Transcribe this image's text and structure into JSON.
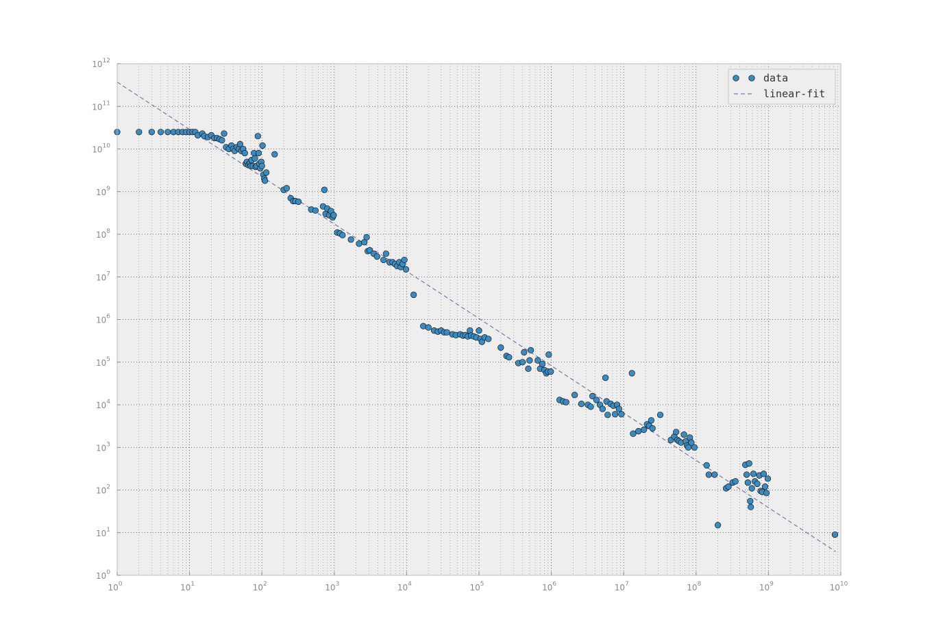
{
  "chart_data": {
    "type": "scatter",
    "xscale": "log",
    "yscale": "log",
    "xlim": [
      1,
      10000000000
    ],
    "ylim": [
      1,
      1000000000000
    ],
    "grid": true,
    "legend_position": "top-right",
    "x_tick_labels": [
      {
        "base": "10",
        "exp": "0"
      },
      {
        "base": "10",
        "exp": "1"
      },
      {
        "base": "10",
        "exp": "2"
      },
      {
        "base": "10",
        "exp": "3"
      },
      {
        "base": "10",
        "exp": "4"
      },
      {
        "base": "10",
        "exp": "5"
      },
      {
        "base": "10",
        "exp": "6"
      },
      {
        "base": "10",
        "exp": "7"
      },
      {
        "base": "10",
        "exp": "8"
      },
      {
        "base": "10",
        "exp": "9"
      },
      {
        "base": "10",
        "exp": "10"
      }
    ],
    "y_tick_labels": [
      {
        "base": "10",
        "exp": "0"
      },
      {
        "base": "10",
        "exp": "1"
      },
      {
        "base": "10",
        "exp": "2"
      },
      {
        "base": "10",
        "exp": "3"
      },
      {
        "base": "10",
        "exp": "4"
      },
      {
        "base": "10",
        "exp": "5"
      },
      {
        "base": "10",
        "exp": "6"
      },
      {
        "base": "10",
        "exp": "7"
      },
      {
        "base": "10",
        "exp": "8"
      },
      {
        "base": "10",
        "exp": "9"
      },
      {
        "base": "10",
        "exp": "10"
      },
      {
        "base": "10",
        "exp": "11"
      },
      {
        "base": "10",
        "exp": "12"
      }
    ],
    "series": [
      {
        "name": "data",
        "kind": "scatter",
        "color": "#3b8bc0",
        "edge_color": "#1a1a1a",
        "points": [
          [
            1,
            25000000000.0
          ],
          [
            2,
            25000000000.0
          ],
          [
            3,
            25000000000.0
          ],
          [
            4,
            25000000000.0
          ],
          [
            5,
            25000000000.0
          ],
          [
            6,
            25000000000.0
          ],
          [
            7,
            25000000000.0
          ],
          [
            8,
            25000000000.0
          ],
          [
            9,
            25000000000.0
          ],
          [
            10,
            25000000000.0
          ],
          [
            11,
            25000000000.0
          ],
          [
            12,
            25000000000.0
          ],
          [
            13,
            21000000000.0
          ],
          [
            15,
            23000000000.0
          ],
          [
            16,
            20000000000.0
          ],
          [
            18,
            19000000000.0
          ],
          [
            20,
            21000000000.0
          ],
          [
            22,
            18000000000.0
          ],
          [
            24,
            18000000000.0
          ],
          [
            26,
            17000000000.0
          ],
          [
            28,
            16000000000.0
          ],
          [
            30,
            23000000000.0
          ],
          [
            32,
            11000000000.0
          ],
          [
            35,
            10000000000.0
          ],
          [
            38,
            12000000000.0
          ],
          [
            40,
            10000000000.0
          ],
          [
            42,
            9000000000.0
          ],
          [
            45,
            11000000000.0
          ],
          [
            48,
            10000000000.0
          ],
          [
            50,
            13000000000.0
          ],
          [
            52,
            9000000000.0
          ],
          [
            55,
            10000000000.0
          ],
          [
            58,
            8000000000.0
          ],
          [
            60,
            4500000000.0
          ],
          [
            62,
            5000000000.0
          ],
          [
            65,
            4200000000.0
          ],
          [
            68,
            4600000000.0
          ],
          [
            70,
            4000000000.0
          ],
          [
            72,
            5500000000.0
          ],
          [
            75,
            4000000000.0
          ],
          [
            78,
            8000000000.0
          ],
          [
            80,
            6000000000.0
          ],
          [
            82,
            3800000000.0
          ],
          [
            85,
            4000000000.0
          ],
          [
            88,
            20000000000.0
          ],
          [
            90,
            8000000000.0
          ],
          [
            92,
            4500000000.0
          ],
          [
            95,
            3500000000.0
          ],
          [
            98,
            5000000000.0
          ],
          [
            100,
            4000000000.0
          ],
          [
            102,
            12000000000.0
          ],
          [
            105,
            2500000000.0
          ],
          [
            108,
            2000000000.0
          ],
          [
            110,
            1800000000.0
          ],
          [
            115,
            2800000000.0
          ],
          [
            150,
            7500000000.0
          ],
          [
            200,
            1100000000.0
          ],
          [
            220,
            1200000000.0
          ],
          [
            250,
            700000000.0
          ],
          [
            270,
            600000000.0
          ],
          [
            290,
            600000000.0
          ],
          [
            320,
            580000000.0
          ],
          [
            480,
            380000000.0
          ],
          [
            550,
            360000000.0
          ],
          [
            700,
            450000000.0
          ],
          [
            730,
            1100000000.0
          ],
          [
            760,
            300000000.0
          ],
          [
            800,
            400000000.0
          ],
          [
            850,
            280000000.0
          ],
          [
            900,
            350000000.0
          ],
          [
            950,
            250000000.0
          ],
          [
            980,
            280000000.0
          ],
          [
            1100,
            110000000.0
          ],
          [
            1200,
            105000000.0
          ],
          [
            1300,
            95000000.0
          ],
          [
            1700,
            75000000.0
          ],
          [
            2200,
            60000000.0
          ],
          [
            2600,
            65000000.0
          ],
          [
            2800,
            85000000.0
          ],
          [
            2900,
            40000000.0
          ],
          [
            3100,
            42000000.0
          ],
          [
            3500,
            35000000.0
          ],
          [
            3900,
            30000000.0
          ],
          [
            4800,
            25000000.0
          ],
          [
            5200,
            35000000.0
          ],
          [
            5800,
            22000000.0
          ],
          [
            6400,
            22000000.0
          ],
          [
            6900,
            20000000.0
          ],
          [
            7400,
            18000000.0
          ],
          [
            7900,
            22000000.0
          ],
          [
            8300,
            17000000.0
          ],
          [
            8800,
            20000000.0
          ],
          [
            9300,
            25000000.0
          ],
          [
            9800,
            15000000.0
          ],
          [
            12500,
            3800000.0
          ],
          [
            17000,
            700000.0
          ],
          [
            20000,
            650000.0
          ],
          [
            24000,
            550000.0
          ],
          [
            27000,
            520000.0
          ],
          [
            30000,
            550000.0
          ],
          [
            33000,
            500000.0
          ],
          [
            36000,
            500000.0
          ],
          [
            43000,
            450000.0
          ],
          [
            48000,
            430000.0
          ],
          [
            55000,
            450000.0
          ],
          [
            60000,
            420000.0
          ],
          [
            65000,
            430000.0
          ],
          [
            70000,
            400000.0
          ],
          [
            75000,
            550000.0
          ],
          [
            78000,
            420000.0
          ],
          [
            85000,
            400000.0
          ],
          [
            92000,
            380000.0
          ],
          [
            100000,
            550000.0
          ],
          [
            105000,
            350000.0
          ],
          [
            110000,
            300000.0
          ],
          [
            120000,
            380000.0
          ],
          [
            135000,
            350000.0
          ],
          [
            200000,
            220000.0
          ],
          [
            240000,
            140000.0
          ],
          [
            260000,
            130000.0
          ],
          [
            350000,
            95000.0
          ],
          [
            400000,
            100000.0
          ],
          [
            420000,
            170000.0
          ],
          [
            480000,
            70000.0
          ],
          [
            500000,
            110000.0
          ],
          [
            520000,
            190000.0
          ],
          [
            650000,
            110000.0
          ],
          [
            700000,
            70000.0
          ],
          [
            750000,
            90000.0
          ],
          [
            800000,
            65000.0
          ],
          [
            850000,
            55000.0
          ],
          [
            900000,
            60000.0
          ],
          [
            920000,
            150000.0
          ],
          [
            980000,
            60000.0
          ],
          [
            1300000,
            13000.0
          ],
          [
            1450000,
            12000.0
          ],
          [
            1600000,
            11500.0
          ],
          [
            2100000,
            17000.0
          ],
          [
            2600000,
            10500.0
          ],
          [
            3200000,
            10000.0
          ],
          [
            3500000,
            9000.0
          ],
          [
            3700000,
            16000.0
          ],
          [
            4200000,
            13000.0
          ],
          [
            4700000,
            10000.0
          ],
          [
            5100000,
            8000.0
          ],
          [
            5600000,
            43000.0
          ],
          [
            5800000,
            12000.0
          ],
          [
            6000000,
            5800.0
          ],
          [
            6600000,
            10500.0
          ],
          [
            7200000,
            9500.0
          ],
          [
            7600000,
            6000.0
          ],
          [
            8100000,
            10000.0
          ],
          [
            8600000,
            8000.0
          ],
          [
            9300000,
            6000.0
          ],
          [
            13000000,
            55000.0
          ],
          [
            13500000,
            2100.0
          ],
          [
            16000000,
            2400.0
          ],
          [
            19000000,
            2600.0
          ],
          [
            21000000,
            3500.0
          ],
          [
            22500000,
            3200.0
          ],
          [
            24000000,
            4300.0
          ],
          [
            25000000,
            2800.0
          ],
          [
            32000000,
            5800.0
          ],
          [
            45000000,
            1500.0
          ],
          [
            50000000,
            1800.0
          ],
          [
            53000000,
            2300.0
          ],
          [
            55000000,
            1500.0
          ],
          [
            58000000,
            1400.0
          ],
          [
            62000000,
            1300.0
          ],
          [
            68000000,
            2000.0
          ],
          [
            72000000,
            1400.0
          ],
          [
            75000000,
            1100.0
          ],
          [
            78000000,
            1000.0
          ],
          [
            82000000,
            1700.0
          ],
          [
            86000000,
            1300.0
          ],
          [
            95000000,
            1000.0
          ],
          [
            140000000,
            380
          ],
          [
            150000000,
            230
          ],
          [
            180000000,
            230
          ],
          [
            200000000,
            15
          ],
          [
            260000000,
            110
          ],
          [
            280000000,
            120
          ],
          [
            320000000,
            150
          ],
          [
            350000000,
            160
          ],
          [
            480000000,
            390
          ],
          [
            500000000,
            230
          ],
          [
            520000000,
            150
          ],
          [
            540000000,
            420
          ],
          [
            560000000,
            55
          ],
          [
            570000000,
            40
          ],
          [
            590000000,
            110
          ],
          [
            620000000,
            240
          ],
          [
            650000000,
            160
          ],
          [
            700000000,
            140
          ],
          [
            750000000,
            220
          ],
          [
            780000000,
            95
          ],
          [
            820000000,
            90
          ],
          [
            860000000,
            240
          ],
          [
            900000000,
            120
          ],
          [
            940000000,
            85
          ],
          [
            980000000,
            185
          ],
          [
            8300000000,
            9
          ]
        ]
      },
      {
        "name": "linear-fit",
        "kind": "line",
        "style": "dashed",
        "color": "#7777aa",
        "points": [
          [
            1,
            370000000000.0
          ],
          [
            8500000000,
            3.6
          ]
        ]
      }
    ]
  }
}
